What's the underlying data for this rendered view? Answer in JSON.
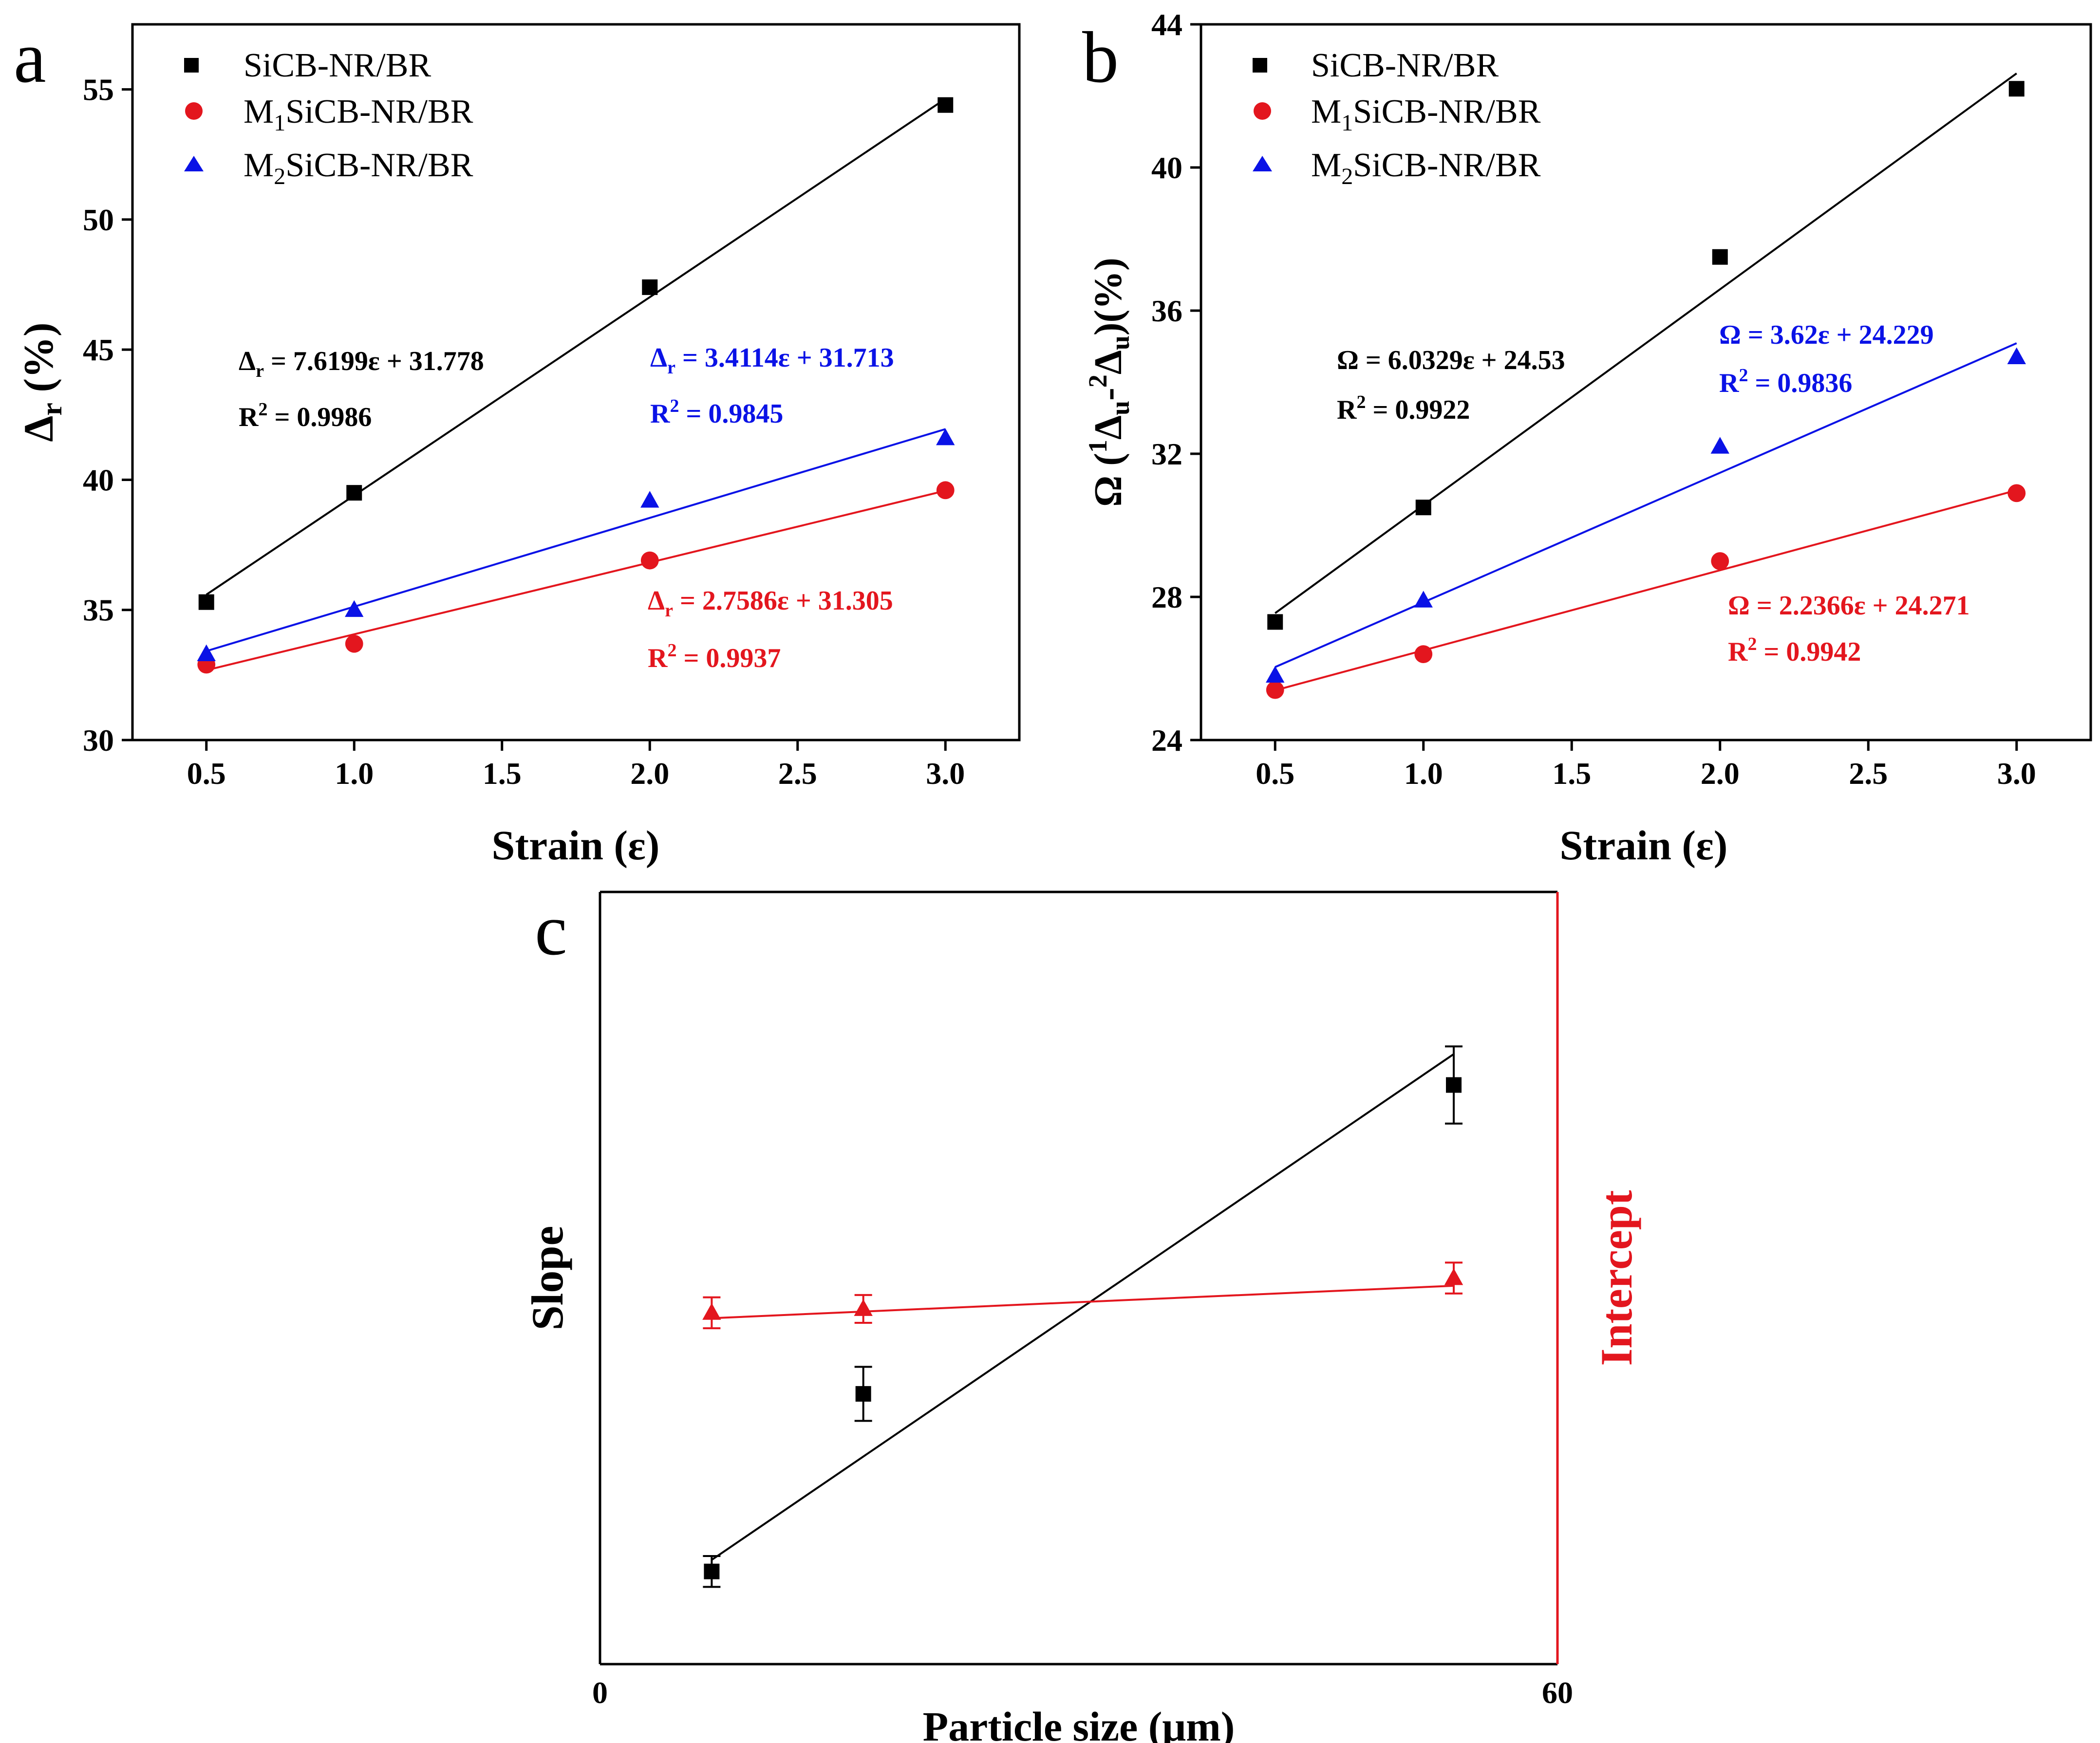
{
  "figure": {
    "panels": {
      "a": "a",
      "b": "b",
      "c": "c"
    },
    "legend": [
      {
        "main": "SiCB-NR/BR",
        "sub": "",
        "rest": ""
      },
      {
        "main": "M",
        "sub": "1",
        "rest": "SiCB-NR/BR"
      },
      {
        "main": "M",
        "sub": "2",
        "rest": "SiCB-NR/BR"
      }
    ],
    "colors": {
      "black": "#000000",
      "red": "#e3161e",
      "blue": "#0a12e6"
    }
  },
  "chart_data": [
    {
      "id": "a",
      "type": "scatter",
      "xlabel": "Strain (ε)",
      "ylabel": {
        "main": "Δ",
        "sub": "r",
        "rest": " (%)"
      },
      "xlim": [
        0.25,
        3.25
      ],
      "ylim": [
        30,
        57.5
      ],
      "xticks": [
        0.5,
        1.0,
        1.5,
        2.0,
        2.5,
        3.0
      ],
      "xtick_labels": [
        "0.5",
        "1.0",
        "1.5",
        "2.0",
        "2.5",
        "3.0"
      ],
      "yticks": [
        30,
        35,
        40,
        45,
        50,
        55
      ],
      "ytick_labels": [
        "30",
        "35",
        "40",
        "45",
        "50",
        "55"
      ],
      "series": [
        {
          "name": "SiCB-NR/BR",
          "color": "#000000",
          "marker": "square",
          "x": [
            0.5,
            1.0,
            2.0,
            3.0
          ],
          "y": [
            35.3,
            39.5,
            47.4,
            54.4
          ],
          "fit": {
            "slope": 7.6199,
            "intercept": 31.778
          }
        },
        {
          "name": "M1SiCB-NR/BR",
          "color": "#e3161e",
          "marker": "circle",
          "x": [
            0.5,
            1.0,
            2.0,
            3.0
          ],
          "y": [
            32.9,
            33.7,
            36.9,
            39.6
          ],
          "fit": {
            "slope": 2.7586,
            "intercept": 31.305
          }
        },
        {
          "name": "M2SiCB-NR/BR",
          "color": "#0a12e6",
          "marker": "triangle",
          "x": [
            0.5,
            1.0,
            2.0,
            3.0
          ],
          "y": [
            33.3,
            35.0,
            39.2,
            41.6
          ],
          "fit": {
            "slope": 3.4114,
            "intercept": 31.713
          }
        }
      ],
      "annotations": [
        {
          "color": "#000000",
          "eq_pre": "Δ",
          "eq_sub": "r",
          "eq_rest": " = 7.6199ε + 31.778",
          "r2_pre": "R",
          "r2_sup": "2",
          "r2_rest": " = 0.9986"
        },
        {
          "color": "#0a12e6",
          "eq_pre": "Δ",
          "eq_sub": "r",
          "eq_rest": " = 3.4114ε + 31.713",
          "r2_pre": "R",
          "r2_sup": "2",
          "r2_rest": " = 0.9845"
        },
        {
          "color": "#e3161e",
          "eq_pre": "Δ",
          "eq_sub": "r",
          "eq_rest": " = 2.7586ε + 31.305",
          "r2_pre": "R",
          "r2_sup": "2",
          "r2_rest": " = 0.9937"
        }
      ]
    },
    {
      "id": "b",
      "type": "scatter",
      "xlabel": "Strain (ε)",
      "ylabel": {
        "p1": "Ω (",
        "s1": "1",
        "p2": "Δ",
        "b1": "u",
        "p3": "-",
        "s2": "2",
        "p4": "Δ",
        "b2": "u",
        "p5": ")(%)"
      },
      "xlim": [
        0.25,
        3.25
      ],
      "ylim": [
        24,
        44
      ],
      "xticks": [
        0.5,
        1.0,
        1.5,
        2.0,
        2.5,
        3.0
      ],
      "xtick_labels": [
        "0.5",
        "1.0",
        "1.5",
        "2.0",
        "2.5",
        "3.0"
      ],
      "yticks": [
        24,
        28,
        32,
        36,
        40,
        44
      ],
      "ytick_labels": [
        "24",
        "28",
        "32",
        "36",
        "40",
        "44"
      ],
      "series": [
        {
          "name": "SiCB-NR/BR",
          "color": "#000000",
          "marker": "square",
          "x": [
            0.5,
            1.0,
            2.0,
            3.0
          ],
          "y": [
            27.3,
            30.5,
            37.5,
            42.2
          ],
          "fit": {
            "slope": 6.0329,
            "intercept": 24.53
          }
        },
        {
          "name": "M1SiCB-NR/BR",
          "color": "#e3161e",
          "marker": "circle",
          "x": [
            0.5,
            1.0,
            2.0,
            3.0
          ],
          "y": [
            25.4,
            26.4,
            29.0,
            30.9
          ],
          "fit": {
            "slope": 2.2366,
            "intercept": 24.271
          }
        },
        {
          "name": "M2SiCB-NR/BR",
          "color": "#0a12e6",
          "marker": "triangle",
          "x": [
            0.5,
            1.0,
            2.0,
            3.0
          ],
          "y": [
            25.8,
            27.9,
            32.2,
            34.7
          ],
          "fit": {
            "slope": 3.62,
            "intercept": 24.229
          }
        }
      ],
      "annotations": [
        {
          "color": "#000000",
          "eq_pre": "Ω",
          "eq_sub": "",
          "eq_rest": " = 6.0329ε + 24.53",
          "r2_pre": "R",
          "r2_sup": "2",
          "r2_rest": " = 0.9922"
        },
        {
          "color": "#0a12e6",
          "eq_pre": "Ω",
          "eq_sub": "",
          "eq_rest": " = 3.62ε + 24.229",
          "r2_pre": "R",
          "r2_sup": "2",
          "r2_rest": " = 0.9836"
        },
        {
          "color": "#e3161e",
          "eq_pre": "Ω",
          "eq_sub": "",
          "eq_rest": " = 2.2366ε + 24.271",
          "r2_pre": "R",
          "r2_sup": "2",
          "r2_rest": " = 0.9942"
        }
      ]
    },
    {
      "id": "c",
      "type": "scatter",
      "xlabel": "Particle size (μm)",
      "ylabel_left": "Slope",
      "ylabel_right": "Intercept",
      "xlim": [
        0,
        60
      ],
      "xtick_labels": [
        "0",
        "60"
      ],
      "xticks": [
        0,
        60
      ],
      "slope_axis_ylim": [
        0,
        10
      ],
      "intercept_axis_ylim": [
        0,
        10
      ],
      "series": [
        {
          "name": "Slope",
          "axis": "left",
          "color": "#000000",
          "marker": "square",
          "x": [
            7,
            16.5,
            53.5
          ],
          "y": [
            1.2,
            3.5,
            7.5
          ],
          "err": [
            0.2,
            0.35,
            0.5
          ],
          "fit": {
            "x": [
              7,
              53.5
            ],
            "y": [
              1.35,
              7.9
            ]
          }
        },
        {
          "name": "Intercept",
          "axis": "right",
          "color": "#e3161e",
          "marker": "triangle",
          "x": [
            7,
            16.5,
            53.5
          ],
          "y": [
            4.55,
            4.6,
            5.0
          ],
          "err": [
            0.2,
            0.18,
            0.2
          ],
          "fit": {
            "x": [
              7,
              53.5
            ],
            "y": [
              4.48,
              4.9
            ]
          }
        }
      ]
    }
  ]
}
